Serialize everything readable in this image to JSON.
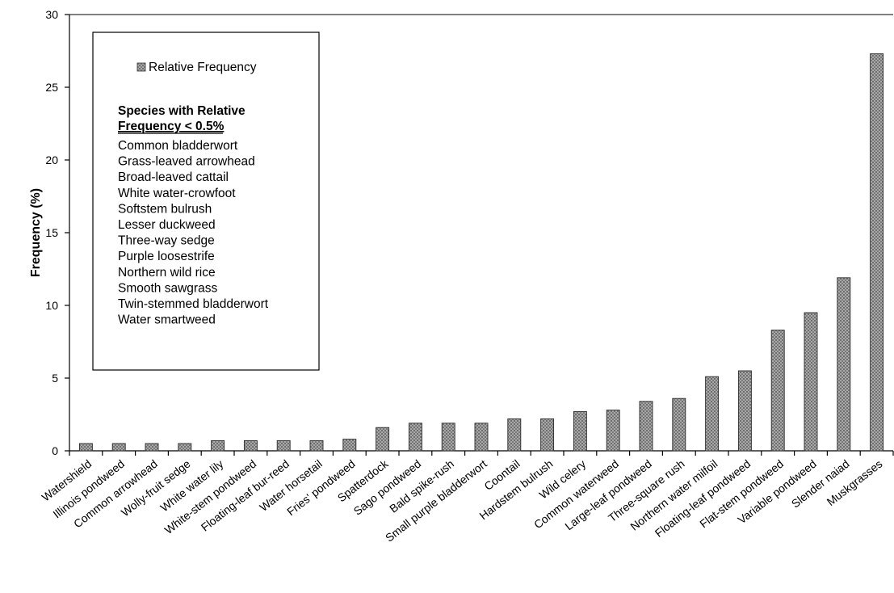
{
  "chart_data": {
    "type": "bar",
    "ylabel": "Frequency (%)",
    "xlabel": "",
    "ylim": [
      0,
      30
    ],
    "yticks": [
      0,
      5,
      10,
      15,
      20,
      25,
      30
    ],
    "grid": false,
    "bar_color": "#8c8c8c",
    "categories": [
      "Watershield",
      "Illinois pondweed",
      "Common arrowhead",
      "Wolly-fruit sedge",
      "White water lily",
      "White-stem pondweed",
      "Floating-leaf bur-reed",
      "Water horsetail",
      "Fries' pondweed",
      "Spatterdock",
      "Sago pondweed",
      "Bald spike-rush",
      "Small purple bladderwort",
      "Coontail",
      "Hardstem bulrush",
      "Wild celery",
      "Common waterweed",
      "Large-leaf pondweed",
      "Three-square rush",
      "Northern water milfoil",
      "Floating-leaf pondweed",
      "Flat-stem pondweed",
      "Variable pondweed",
      "Slender naiad",
      "Muskgrasses"
    ],
    "series": [
      {
        "name": "Relative Frequency",
        "values": [
          0.5,
          0.5,
          0.5,
          0.5,
          0.7,
          0.7,
          0.7,
          0.7,
          0.8,
          1.6,
          1.9,
          1.9,
          1.9,
          2.2,
          2.2,
          2.7,
          2.8,
          3.4,
          3.6,
          5.1,
          5.5,
          8.3,
          9.5,
          11.9,
          27.3
        ]
      }
    ],
    "legend": {
      "placement": "top-left",
      "series_label": "Relative Frequency",
      "heading_line1": "Species with Relative",
      "heading_line2": "Frequency < 0.5%",
      "species": [
        "Common bladderwort",
        "Grass-leaved arrowhead",
        "Broad-leaved cattail",
        "White water-crowfoot",
        "Softstem bulrush",
        "Lesser duckweed",
        "Three-way sedge",
        "Purple loosestrife",
        "Northern wild rice",
        "Smooth sawgrass",
        "Twin-stemmed bladderwort",
        "Water smartweed"
      ]
    }
  }
}
